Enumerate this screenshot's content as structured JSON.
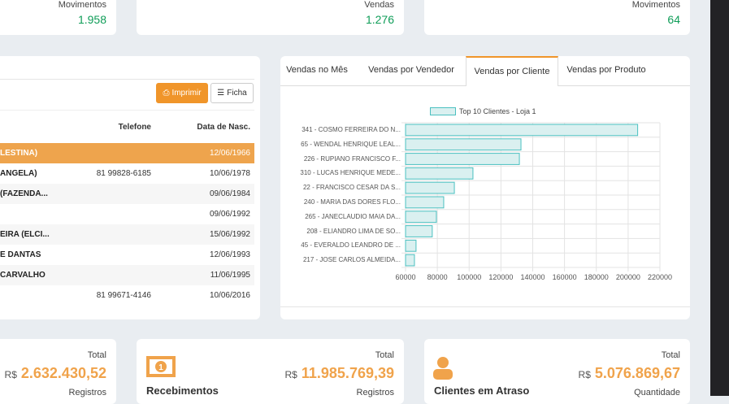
{
  "top_cards": [
    {
      "label": "Movimentos",
      "value": "1.958"
    },
    {
      "label": "Vendas",
      "value": "1.276"
    },
    {
      "label": "Movimentos",
      "value": "64"
    }
  ],
  "table": {
    "print_label": "Imprimir",
    "ficha_label": "Ficha",
    "headers": {
      "phone": "Telefone",
      "birth": "Data de Nasc."
    },
    "rows": [
      {
        "name": "LESTINA)",
        "phone": "",
        "birth": "12/06/1966",
        "selected": true
      },
      {
        "name": "ANGELA)",
        "phone": "81 99828-6185",
        "birth": "10/06/1978"
      },
      {
        "name": " (FAZENDA...",
        "phone": "",
        "birth": "09/06/1984"
      },
      {
        "name": "",
        "phone": "",
        "birth": "09/06/1992"
      },
      {
        "name": "EIRA (ELCI...",
        "phone": "",
        "birth": "15/06/1992"
      },
      {
        "name": "E DANTAS",
        "phone": "",
        "birth": "12/06/1993"
      },
      {
        "name": "CARVALHO",
        "phone": "",
        "birth": "11/06/1995"
      },
      {
        "name": "",
        "phone": "81 99671-4146",
        "birth": "10/06/2016"
      }
    ]
  },
  "tabs": [
    {
      "label": "Vendas no Mês"
    },
    {
      "label": "Vendas por Vendedor"
    },
    {
      "label": "Vendas por Cliente",
      "active": true
    },
    {
      "label": "Vendas por Produto"
    }
  ],
  "chart_data": {
    "type": "bar",
    "orientation": "horizontal",
    "legend": "top",
    "grid": true,
    "series": [
      {
        "name": "Top 10 Clientes - Loja 1",
        "color": "#4bc0c0",
        "values": [
          206000,
          132600,
          131600,
          102400,
          90700,
          84000,
          79400,
          76800,
          66600,
          65600
        ]
      }
    ],
    "categories": [
      "341 - COSMO FERREIRA DO N...",
      "65 - WENDAL HENRIQUE LEAL...",
      "226 - RUPIANO FRANCISCO F...",
      "310 - LUCAS HENRIQUE MEDE...",
      "22 - FRANCISCO CESAR DA S...",
      "240 - MARIA DAS DORES FLO...",
      "265 - JANECLAUDIO MAIA DA...",
      "208 - ELIANDRO LIMA DE SO...",
      "45 - EVERALDO LEANDRO DE ...",
      "217 - JOSE CARLOS ALMEIDA..."
    ],
    "xlim": [
      60000,
      220000
    ],
    "xticks": [
      "60000",
      "80000",
      "100000",
      "120000",
      "140000",
      "160000",
      "180000",
      "200000",
      "220000"
    ]
  },
  "bottom_cards": [
    {
      "title": "",
      "total_label": "Total",
      "currency": "R$",
      "total": "2.632.430,52",
      "sub_label": "Registros"
    },
    {
      "title": "Recebimentos",
      "icon": "money-icon",
      "total_label": "Total",
      "currency": "R$",
      "total": "11.985.769,39",
      "sub_label": "Registros"
    },
    {
      "title": "Clientes em Atraso",
      "icon": "user-icon",
      "total_label": "Total",
      "currency": "R$",
      "total": "5.076.869,67",
      "sub_label": "Quantidade"
    }
  ],
  "colors": {
    "accent": "#f0a34b",
    "green": "#0f9d58"
  }
}
